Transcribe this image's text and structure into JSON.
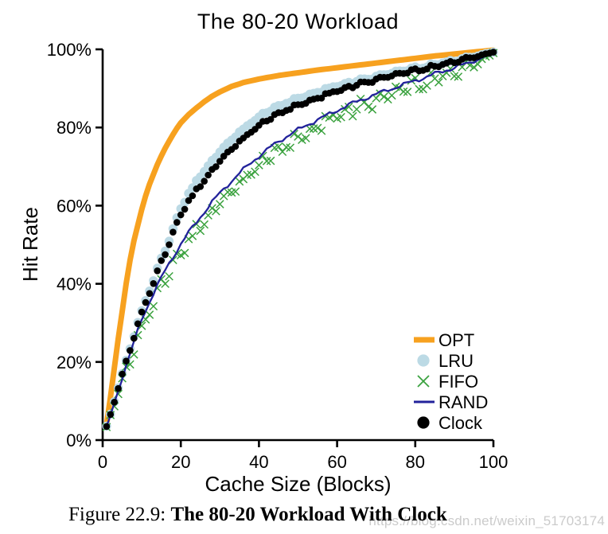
{
  "caption": {
    "prefix": "Figure 22.9: ",
    "bold": "The 80-20 Workload With Clock"
  },
  "watermark": {
    "text": "https://blog.csdn.net/weixin_51703174",
    "color": "#cbcbcb"
  },
  "chart_data": {
    "type": "line",
    "title": "The 80-20 Workload",
    "xlabel": "Cache Size (Blocks)",
    "ylabel": "Hit Rate",
    "xlim": [
      0,
      100
    ],
    "ylim": [
      0,
      100
    ],
    "grid": false,
    "legend_position": "lower right",
    "x_ticks": [
      0,
      20,
      40,
      60,
      80,
      100
    ],
    "y_ticks": [
      0,
      20,
      40,
      60,
      80,
      100
    ],
    "y_tick_labels": [
      "0%",
      "20%",
      "40%",
      "60%",
      "80%",
      "100%"
    ],
    "axis_color": "#000000",
    "series": [
      {
        "name": "OPT",
        "color": "#F7A11F",
        "style": "line-thick",
        "points": [
          [
            1,
            4
          ],
          [
            2,
            11
          ],
          [
            3,
            18.5
          ],
          [
            4,
            26
          ],
          [
            5,
            33
          ],
          [
            6,
            40
          ],
          [
            7,
            46
          ],
          [
            8,
            51
          ],
          [
            9,
            55
          ],
          [
            10,
            59
          ],
          [
            11,
            62.5
          ],
          [
            12,
            65.5
          ],
          [
            13,
            68
          ],
          [
            14,
            70.5
          ],
          [
            15,
            72.7
          ],
          [
            16,
            74.7
          ],
          [
            17,
            76.5
          ],
          [
            18,
            78.2
          ],
          [
            19,
            79.8
          ],
          [
            20,
            81.2
          ],
          [
            22,
            83.3
          ],
          [
            24,
            85
          ],
          [
            26,
            86.6
          ],
          [
            28,
            88
          ],
          [
            30,
            89.1
          ],
          [
            33,
            90.5
          ],
          [
            36,
            91.5
          ],
          [
            40,
            92.4
          ],
          [
            45,
            93.3
          ],
          [
            50,
            94
          ],
          [
            55,
            94.7
          ],
          [
            60,
            95.3
          ],
          [
            65,
            95.9
          ],
          [
            70,
            96.5
          ],
          [
            75,
            97.1
          ],
          [
            80,
            97.7
          ],
          [
            85,
            98.3
          ],
          [
            90,
            98.8
          ],
          [
            95,
            99.3
          ],
          [
            100,
            99.8
          ]
        ]
      },
      {
        "name": "LRU",
        "color": "#BCDAE5",
        "style": "dots-large",
        "points": [
          [
            1,
            3.6
          ],
          [
            2,
            6.6
          ],
          [
            3,
            10
          ],
          [
            4,
            13.5
          ],
          [
            5,
            17
          ],
          [
            6,
            20.4
          ],
          [
            7,
            23.8
          ],
          [
            8,
            27
          ],
          [
            9,
            30.2
          ],
          [
            10,
            33.3
          ],
          [
            11,
            36
          ],
          [
            12,
            38.6
          ],
          [
            13,
            41.2
          ],
          [
            14,
            43.9
          ],
          [
            15,
            46.4
          ],
          [
            16,
            48.8
          ],
          [
            17,
            51.3
          ],
          [
            18,
            54
          ],
          [
            19,
            56.8
          ],
          [
            20,
            59.5
          ],
          [
            22,
            63.2
          ],
          [
            25,
            67.8
          ],
          [
            28,
            71.6
          ],
          [
            30,
            74
          ],
          [
            32,
            76.1
          ],
          [
            35,
            79
          ],
          [
            38,
            81.4
          ],
          [
            40,
            82.9
          ],
          [
            43,
            84.6
          ],
          [
            45,
            85.6
          ],
          [
            48,
            86.9
          ],
          [
            50,
            87.6
          ],
          [
            53,
            88.6
          ],
          [
            55,
            89.2
          ],
          [
            58,
            90.1
          ],
          [
            60,
            90.7
          ],
          [
            63,
            91.5
          ],
          [
            65,
            92
          ],
          [
            68,
            92.7
          ],
          [
            70,
            93.2
          ],
          [
            73,
            93.9
          ],
          [
            75,
            94.3
          ],
          [
            78,
            94.9
          ],
          [
            80,
            95.3
          ],
          [
            83,
            95.9
          ],
          [
            85,
            96.3
          ],
          [
            88,
            96.9
          ],
          [
            90,
            97.3
          ],
          [
            93,
            97.9
          ],
          [
            95,
            98.3
          ],
          [
            98,
            98.9
          ],
          [
            100,
            99.3
          ]
        ]
      },
      {
        "name": "FIFO",
        "color": "#3BA23F",
        "style": "xmarks",
        "points": [
          [
            1,
            3.4
          ],
          [
            2,
            6.2
          ],
          [
            3,
            9.4
          ],
          [
            4,
            12.6
          ],
          [
            5,
            15.8
          ],
          [
            6,
            18.7
          ],
          [
            7,
            21.6
          ],
          [
            8,
            24.5
          ],
          [
            9,
            27.4
          ],
          [
            10,
            30.2
          ],
          [
            11,
            32.4
          ],
          [
            12,
            34.4
          ],
          [
            13,
            36.4
          ],
          [
            14,
            38.4
          ],
          [
            15,
            40.3
          ],
          [
            16,
            42.1
          ],
          [
            17,
            43.9
          ],
          [
            18,
            45.6
          ],
          [
            19,
            47.2
          ],
          [
            20,
            48.8
          ],
          [
            22,
            51.8
          ],
          [
            25,
            55.7
          ],
          [
            28,
            59.5
          ],
          [
            30,
            61.8
          ],
          [
            32,
            63.9
          ],
          [
            35,
            66.9
          ],
          [
            38,
            69.6
          ],
          [
            40,
            71.3
          ],
          [
            43,
            73.6
          ],
          [
            45,
            75.1
          ],
          [
            48,
            77.1
          ],
          [
            50,
            78.3
          ],
          [
            53,
            80
          ],
          [
            55,
            81.1
          ],
          [
            58,
            82.6
          ],
          [
            60,
            83.6
          ],
          [
            63,
            85
          ],
          [
            65,
            85.9
          ],
          [
            68,
            87.2
          ],
          [
            70,
            87.9
          ],
          [
            73,
            89.1
          ],
          [
            75,
            89.9
          ],
          [
            78,
            91
          ],
          [
            80,
            91.7
          ],
          [
            83,
            92.8
          ],
          [
            85,
            93.5
          ],
          [
            88,
            94.5
          ],
          [
            90,
            95.2
          ],
          [
            93,
            96.2
          ],
          [
            95,
            96.9
          ],
          [
            98,
            98.3
          ],
          [
            100,
            99.2
          ]
        ]
      },
      {
        "name": "RAND",
        "color": "#22229B",
        "style": "line-thin",
        "points": [
          [
            1,
            3.4
          ],
          [
            2,
            6.3
          ],
          [
            3,
            9.5
          ],
          [
            4,
            12.8
          ],
          [
            5,
            16
          ],
          [
            6,
            19
          ],
          [
            7,
            22
          ],
          [
            8,
            25
          ],
          [
            9,
            28
          ],
          [
            10,
            31
          ],
          [
            11,
            33.2
          ],
          [
            12,
            35.4
          ],
          [
            13,
            37.5
          ],
          [
            14,
            39.5
          ],
          [
            15,
            41.5
          ],
          [
            16,
            43.4
          ],
          [
            17,
            45.2
          ],
          [
            18,
            46.9
          ],
          [
            19,
            48.5
          ],
          [
            20,
            50.1
          ],
          [
            22,
            53.1
          ],
          [
            25,
            57.1
          ],
          [
            28,
            60.9
          ],
          [
            30,
            63.2
          ],
          [
            32,
            65.3
          ],
          [
            35,
            68.3
          ],
          [
            38,
            71
          ],
          [
            40,
            72.7
          ],
          [
            43,
            75
          ],
          [
            45,
            76.4
          ],
          [
            48,
            78.3
          ],
          [
            50,
            79.4
          ],
          [
            53,
            81
          ],
          [
            55,
            82
          ],
          [
            58,
            83.4
          ],
          [
            60,
            84.4
          ],
          [
            63,
            85.8
          ],
          [
            65,
            86.6
          ],
          [
            68,
            87.8
          ],
          [
            70,
            88.5
          ],
          [
            73,
            89.6
          ],
          [
            75,
            90.3
          ],
          [
            78,
            91.3
          ],
          [
            80,
            92
          ],
          [
            83,
            93
          ],
          [
            85,
            93.7
          ],
          [
            88,
            94.7
          ],
          [
            90,
            95.3
          ],
          [
            93,
            96.3
          ],
          [
            95,
            96.9
          ],
          [
            98,
            98.3
          ],
          [
            100,
            99.2
          ]
        ]
      },
      {
        "name": "Clock",
        "color": "#000000",
        "style": "dots-small",
        "points": [
          [
            1,
            3.5
          ],
          [
            2,
            6.5
          ],
          [
            3,
            9.9
          ],
          [
            4,
            13.4
          ],
          [
            5,
            16.9
          ],
          [
            6,
            20.2
          ],
          [
            7,
            23.5
          ],
          [
            8,
            26.7
          ],
          [
            9,
            29.9
          ],
          [
            10,
            33
          ],
          [
            11,
            35.6
          ],
          [
            12,
            38.1
          ],
          [
            13,
            40.6
          ],
          [
            14,
            43.2
          ],
          [
            15,
            45.7
          ],
          [
            16,
            48
          ],
          [
            17,
            50.5
          ],
          [
            18,
            53.1
          ],
          [
            19,
            55.6
          ],
          [
            20,
            58
          ],
          [
            22,
            61.4
          ],
          [
            25,
            65.4
          ],
          [
            28,
            69.3
          ],
          [
            30,
            71.7
          ],
          [
            32,
            73.8
          ],
          [
            35,
            76.7
          ],
          [
            38,
            79.2
          ],
          [
            40,
            80.8
          ],
          [
            43,
            82.6
          ],
          [
            45,
            83.8
          ],
          [
            48,
            85.2
          ],
          [
            50,
            86
          ],
          [
            53,
            87.1
          ],
          [
            55,
            87.8
          ],
          [
            58,
            88.8
          ],
          [
            60,
            89.5
          ],
          [
            63,
            90.5
          ],
          [
            65,
            91.1
          ],
          [
            68,
            92
          ],
          [
            70,
            92.5
          ],
          [
            73,
            93.3
          ],
          [
            75,
            93.7
          ],
          [
            78,
            94.4
          ],
          [
            80,
            94.8
          ],
          [
            83,
            95.5
          ],
          [
            85,
            95.9
          ],
          [
            88,
            96.6
          ],
          [
            90,
            97.1
          ],
          [
            93,
            97.8
          ],
          [
            95,
            98.2
          ],
          [
            98,
            98.9
          ],
          [
            100,
            99.3
          ]
        ]
      }
    ],
    "legend": [
      "OPT",
      "LRU",
      "FIFO",
      "RAND",
      "Clock"
    ]
  }
}
